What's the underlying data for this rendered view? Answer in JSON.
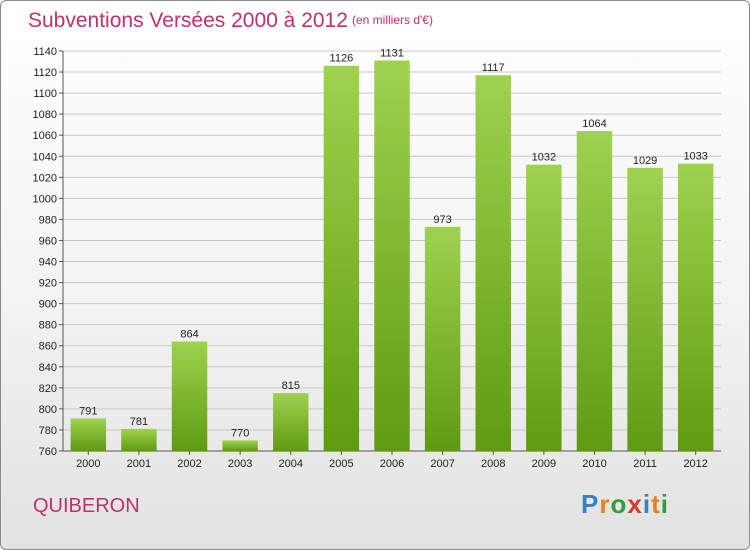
{
  "title": "Subventions Versées 2000 à 2012",
  "subtitle": "(en milliers d'€)",
  "place": "QUIBERON",
  "logo": {
    "text": "Proxiti",
    "letters": [
      {
        "ch": "P",
        "color": "#3a7fc1"
      },
      {
        "ch": "r",
        "color": "#e8801c"
      },
      {
        "ch": "o",
        "color": "#2f9e3a"
      },
      {
        "ch": "x",
        "color": "#d83a2a"
      },
      {
        "ch": "i",
        "color": "#3a7fc1"
      },
      {
        "ch": "t",
        "color": "#e8801c"
      },
      {
        "ch": "i",
        "color": "#2f9e3a"
      }
    ]
  },
  "colors": {
    "title": "#c0306f",
    "bar_top": "#9fd24f",
    "bar_bottom": "#5f9b12",
    "grid": "#c8c8c8"
  },
  "chart_data": {
    "type": "bar",
    "categories": [
      "2000",
      "2001",
      "2002",
      "2003",
      "2004",
      "2005",
      "2006",
      "2007",
      "2008",
      "2009",
      "2010",
      "2011",
      "2012"
    ],
    "values": [
      791,
      781,
      864,
      770,
      815,
      1126,
      1131,
      973,
      1117,
      1032,
      1064,
      1029,
      1033
    ],
    "ylim": [
      760,
      1140
    ],
    "ytick_step": 20,
    "grid": true,
    "xlabel": "",
    "ylabel": ""
  }
}
